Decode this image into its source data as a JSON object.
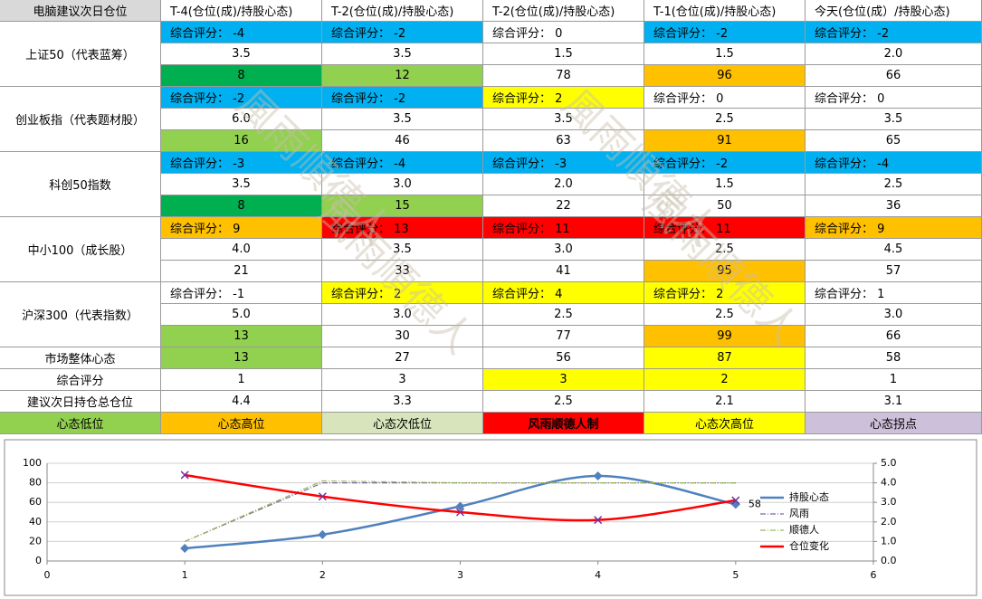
{
  "table": {
    "header": [
      "电脑建议次日仓位",
      "T-4(仓位(成)/持股心态)",
      "T-2(仓位(成)/持股心态)",
      "T-2(仓位(成)/持股心态)",
      "T-1(仓位(成)/持股心态)",
      "今天(仓位(成）/持股心态)"
    ],
    "groups": [
      {
        "name": "上证50（代表蓝筹）",
        "scores": [
          "综合评分： -4",
          "综合评分： -2",
          "综合评分： 0",
          "综合评分： -2",
          "综合评分： -2"
        ],
        "score_colors": [
          "#00b0f0",
          "#00b0f0",
          null,
          "#00b0f0",
          "#00b0f0"
        ],
        "positions": [
          "3.5",
          "3.5",
          "1.5",
          "1.5",
          "2.0"
        ],
        "moods": [
          "8",
          "12",
          "78",
          "96",
          "66"
        ],
        "mood_colors": [
          "#00b050",
          "#92d050",
          null,
          "#ffc000",
          null
        ]
      },
      {
        "name": "创业板指（代表题材股）",
        "scores": [
          "综合评分： -2",
          "综合评分： -2",
          "综合评分： 2",
          "综合评分： 0",
          "综合评分： 0"
        ],
        "score_colors": [
          "#00b0f0",
          "#00b0f0",
          "#ffff00",
          null,
          null
        ],
        "positions": [
          "6.0",
          "3.5",
          "3.5",
          "2.5",
          "3.5"
        ],
        "moods": [
          "16",
          "46",
          "63",
          "91",
          "65"
        ],
        "mood_colors": [
          "#92d050",
          null,
          null,
          "#ffc000",
          null
        ]
      },
      {
        "name": "科创50指数",
        "scores": [
          "综合评分： -3",
          "综合评分： -4",
          "综合评分： -3",
          "综合评分： -2",
          "综合评分： -4"
        ],
        "score_colors": [
          "#00b0f0",
          "#00b0f0",
          "#00b0f0",
          "#00b0f0",
          "#00b0f0"
        ],
        "positions": [
          "3.5",
          "3.0",
          "2.0",
          "1.5",
          "2.5"
        ],
        "moods": [
          "8",
          "15",
          "22",
          "50",
          "36"
        ],
        "mood_colors": [
          "#00b050",
          "#92d050",
          null,
          null,
          null
        ]
      },
      {
        "name": "中小100（成长股）",
        "scores": [
          "综合评分： 9",
          "综合评分： 13",
          "综合评分： 11",
          "综合评分： 11",
          "综合评分： 9"
        ],
        "score_colors": [
          "#ffc000",
          "#ff0000",
          "#ff0000",
          "#ff0000",
          "#ffc000"
        ],
        "positions": [
          "4.0",
          "3.5",
          "3.0",
          "2.5",
          "4.5"
        ],
        "moods": [
          "21",
          "33",
          "41",
          "95",
          "57"
        ],
        "mood_colors": [
          null,
          null,
          null,
          "#ffc000",
          null
        ]
      },
      {
        "name": "沪深300（代表指数）",
        "scores": [
          "综合评分： -1",
          "综合评分： 2",
          "综合评分： 4",
          "综合评分： 2",
          "综合评分： 1"
        ],
        "score_colors": [
          null,
          "#ffff00",
          "#ffff00",
          "#ffff00",
          null
        ],
        "positions": [
          "5.0",
          "3.0",
          "2.5",
          "2.5",
          "3.0"
        ],
        "moods": [
          "13",
          "30",
          "77",
          "99",
          "66"
        ],
        "mood_colors": [
          "#92d050",
          null,
          null,
          "#ffc000",
          null
        ]
      }
    ],
    "summary": [
      {
        "name": "市场整体心态",
        "values": [
          "13",
          "27",
          "56",
          "87",
          "58"
        ],
        "colors": [
          "#92d050",
          null,
          null,
          "#ffff00",
          null
        ]
      },
      {
        "name": "综合评分",
        "values": [
          "1",
          "3",
          "3",
          "2",
          "1"
        ],
        "colors": [
          null,
          null,
          "#ffff00",
          "#ffff00",
          null
        ]
      },
      {
        "name": "建议次日持仓总仓位",
        "values": [
          "4.4",
          "3.3",
          "2.5",
          "2.1",
          "3.1"
        ],
        "colors": [
          null,
          null,
          null,
          null,
          null
        ]
      }
    ],
    "legend": [
      {
        "label": "心态低位",
        "color": "#92d050"
      },
      {
        "label": "心态高位",
        "color": "#ffc000"
      },
      {
        "label": "心态次低位",
        "color": "#d8e4bc"
      },
      {
        "label": "风雨顺德人制",
        "color": "#ff0000"
      },
      {
        "label": "心态次高位",
        "color": "#ffff00"
      },
      {
        "label": "心态拐点",
        "color": "#ccc0da"
      }
    ],
    "watermark": "風雨順德人"
  },
  "chart_data": {
    "type": "line",
    "x": [
      1,
      2,
      3,
      4,
      5
    ],
    "xlim": [
      0,
      6
    ],
    "xticks": [
      0,
      1,
      2,
      3,
      4,
      5,
      6
    ],
    "ylim": [
      0,
      100
    ],
    "yticks": [
      0,
      20,
      40,
      60,
      80,
      100
    ],
    "y2lim": [
      0,
      5
    ],
    "y2ticks": [
      {
        "value": 0,
        "label": "0.0"
      },
      {
        "value": 1,
        "label": "1.0"
      },
      {
        "value": 2,
        "label": "2.0"
      },
      {
        "value": 3,
        "label": "3.0"
      },
      {
        "value": 4,
        "label": "4.0"
      },
      {
        "value": 5,
        "label": "5.0"
      }
    ],
    "grid": true,
    "legend": "right",
    "series": [
      {
        "name": "持股心态",
        "color": "#4f81bd",
        "values": [
          13,
          27,
          56,
          87,
          58
        ],
        "smooth": true,
        "marker": "diamond",
        "value_labels": [
          null,
          null,
          null,
          null,
          "58"
        ]
      },
      {
        "name": "风雨",
        "color": "#8064a2",
        "values": [
          1.0,
          4.0,
          4.0,
          4.0,
          4.0
        ],
        "axis": "y2",
        "dash": "6 2 1 2"
      },
      {
        "name": "顺德人",
        "color": "#9bbb59",
        "values": [
          1.0,
          4.1,
          4.0,
          4.0,
          4.0
        ],
        "axis": "y2",
        "dash": "6 2 1 2"
      },
      {
        "name": "仓位变化",
        "color": "#ff0000",
        "values": [
          4.4,
          3.3,
          2.5,
          2.1,
          3.1
        ],
        "axis": "y2",
        "smooth": true,
        "marker": "x"
      }
    ]
  }
}
